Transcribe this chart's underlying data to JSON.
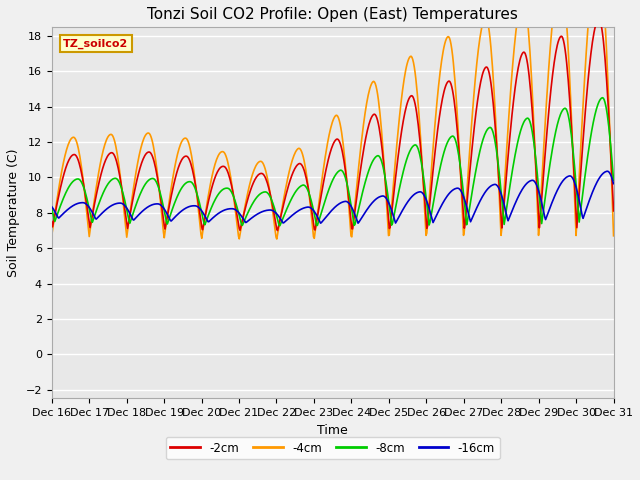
{
  "title": "Tonzi Soil CO2 Profile: Open (East) Temperatures",
  "xlabel": "Time",
  "ylabel": "Soil Temperature (C)",
  "ylim": [
    -2.5,
    18.5
  ],
  "xlim": [
    0,
    15
  ],
  "x_tick_labels": [
    "Dec 16",
    "Dec 17",
    "Dec 18",
    "Dec 19",
    "Dec 20",
    "Dec 21",
    "Dec 22",
    "Dec 23",
    "Dec 24",
    "Dec 25",
    "Dec 26",
    "Dec 27",
    "Dec 28",
    "Dec 29",
    "Dec 30",
    "Dec 31"
  ],
  "series_labels": [
    "-2cm",
    "-4cm",
    "-8cm",
    "-16cm"
  ],
  "series_colors": [
    "#dd0000",
    "#ff9900",
    "#00cc00",
    "#0000cc"
  ],
  "bg_color": "#e8e8e8",
  "grid_color": "#ffffff",
  "annotation_text": "TZ_soilco2",
  "title_fontsize": 11,
  "axis_label_fontsize": 9,
  "tick_fontsize": 8,
  "yticks": [
    -2,
    0,
    2,
    4,
    6,
    8,
    10,
    12,
    14,
    16,
    18
  ],
  "fig_facecolor": "#f0f0f0"
}
